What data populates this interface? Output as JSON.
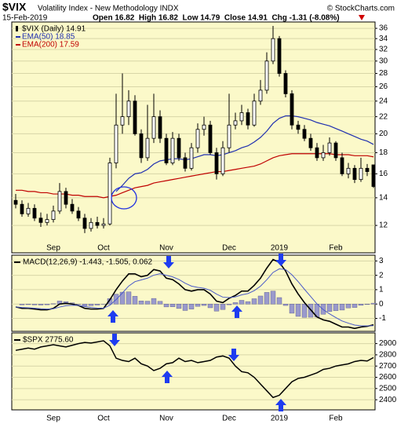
{
  "chart_data": [
    {
      "type": "candlestick",
      "symbol": "$VIX",
      "title": "Volatility Index - New Methodology INDX",
      "date": "15-Feb-2019",
      "quote": "Open 16.82  High 16.82  Low 14.79  Close 14.91  Chg -1.31 (-8.08%)",
      "source": "© StockCharts.com",
      "categories": [
        null,
        null,
        null,
        null,
        null,
        null,
        "Sep",
        null,
        null,
        null,
        null,
        null,
        null,
        null,
        "Oct",
        null,
        null,
        null,
        null,
        null,
        null,
        null,
        null,
        null,
        "Nov",
        null,
        null,
        null,
        null,
        null,
        null,
        null,
        null,
        null,
        "Dec",
        null,
        null,
        null,
        null,
        null,
        null,
        null,
        "2019",
        null,
        null,
        null,
        null,
        null,
        null,
        null,
        null,
        "Feb",
        null,
        null,
        null,
        null,
        null,
        null
      ],
      "candles": {
        "name": "$VIX (Daily) 14.91",
        "color": "#000000",
        "open": [
          13.8,
          13.5,
          12.8,
          13.2,
          12.5,
          12.2,
          12.4,
          13.0,
          14.5,
          13.5,
          13.0,
          12.5,
          11.8,
          12.2,
          12.0,
          12.1,
          17.0,
          21.0,
          22.0,
          24.0,
          20.0,
          17.5,
          19.5,
          22.0,
          19.5,
          17.0,
          19.5,
          17.5,
          16.5,
          18.5,
          20.5,
          21.0,
          18.0,
          16.0,
          18.5,
          21.0,
          21.5,
          22.5,
          21.0,
          24.0,
          25.5,
          30.0,
          34.0,
          28.0,
          25.0,
          21.0,
          20.5,
          19.5,
          18.5,
          17.5,
          18.0,
          19.0,
          17.5,
          16.0,
          16.5,
          15.5,
          16.5,
          16.82
        ],
        "high": [
          14.3,
          13.8,
          13.6,
          13.5,
          12.9,
          12.8,
          13.4,
          15.2,
          14.8,
          13.9,
          13.3,
          12.8,
          12.5,
          12.6,
          12.5,
          17.5,
          25.0,
          28.0,
          25.5,
          24.8,
          20.5,
          23.5,
          25.0,
          22.8,
          20.0,
          20.2,
          20.0,
          18.0,
          19.0,
          21.2,
          22.0,
          21.5,
          18.5,
          19.2,
          25.0,
          22.5,
          23.5,
          23.0,
          25.0,
          27.0,
          31.5,
          36.5,
          34.5,
          28.5,
          25.5,
          21.5,
          21.0,
          20.0,
          19.0,
          18.8,
          19.6,
          19.2,
          18.0,
          17.0,
          16.8,
          17.5,
          16.9,
          16.82
        ],
        "low": [
          13.2,
          12.6,
          12.6,
          12.3,
          11.9,
          12.0,
          12.2,
          12.8,
          13.2,
          12.8,
          12.3,
          11.5,
          11.6,
          11.8,
          11.8,
          12.0,
          16.5,
          20.0,
          21.0,
          19.8,
          17.0,
          17.2,
          19.0,
          19.0,
          16.8,
          16.8,
          17.2,
          16.2,
          16.3,
          18.0,
          19.8,
          17.8,
          15.5,
          15.8,
          18.0,
          20.5,
          21.0,
          20.5,
          20.8,
          23.5,
          25.0,
          29.5,
          27.5,
          24.5,
          20.5,
          20.0,
          19.2,
          18.2,
          17.2,
          17.2,
          17.7,
          17.2,
          15.8,
          15.6,
          15.2,
          15.3,
          15.8,
          14.79
        ],
        "close": [
          13.5,
          12.8,
          13.2,
          12.5,
          12.2,
          12.4,
          13.0,
          14.5,
          13.5,
          13.0,
          12.5,
          11.8,
          12.2,
          12.0,
          12.1,
          17.0,
          21.0,
          22.0,
          24.0,
          20.0,
          17.5,
          19.5,
          22.0,
          19.5,
          17.0,
          19.5,
          17.5,
          16.5,
          18.5,
          20.5,
          21.0,
          18.0,
          16.0,
          18.5,
          21.0,
          21.5,
          22.5,
          21.0,
          24.0,
          25.5,
          30.0,
          34.0,
          28.0,
          25.0,
          21.0,
          20.5,
          19.5,
          18.5,
          17.5,
          18.0,
          19.0,
          17.5,
          16.0,
          16.5,
          15.5,
          16.5,
          16.2,
          14.91
        ]
      },
      "series": [
        {
          "name": "EMA(50) 18.85",
          "color": "#1f2fb0",
          "values": [
            null,
            null,
            null,
            null,
            null,
            null,
            null,
            null,
            null,
            null,
            null,
            null,
            null,
            null,
            null,
            null,
            14.5,
            15.0,
            15.6,
            16.0,
            16.1,
            16.4,
            16.9,
            17.2,
            17.3,
            17.4,
            17.4,
            17.3,
            17.4,
            17.6,
            17.8,
            17.8,
            17.7,
            17.8,
            18.0,
            18.2,
            18.5,
            18.7,
            19.1,
            19.6,
            20.3,
            21.2,
            21.8,
            22.1,
            22.1,
            22.0,
            21.8,
            21.6,
            21.3,
            21.1,
            20.9,
            20.6,
            20.3,
            20.0,
            19.7,
            19.4,
            19.2,
            18.85
          ]
        },
        {
          "name": "EMA(200) 17.59",
          "color": "#c00000",
          "values": [
            14.6,
            14.6,
            14.5,
            14.5,
            14.4,
            14.4,
            14.3,
            14.3,
            14.3,
            14.2,
            14.2,
            14.1,
            14.1,
            14.1,
            14.0,
            14.1,
            14.2,
            14.4,
            14.6,
            14.8,
            14.9,
            15.0,
            15.2,
            15.3,
            15.4,
            15.5,
            15.6,
            15.7,
            15.8,
            15.9,
            16.0,
            16.1,
            16.2,
            16.2,
            16.3,
            16.4,
            16.5,
            16.6,
            16.7,
            16.9,
            17.2,
            17.5,
            17.7,
            17.8,
            17.9,
            17.9,
            17.9,
            17.9,
            17.9,
            17.9,
            17.9,
            17.8,
            17.8,
            17.8,
            17.7,
            17.7,
            17.7,
            17.59
          ]
        }
      ],
      "ylim": [
        10.3,
        37.3
      ],
      "yticks": [
        12,
        14,
        16,
        18,
        20,
        22,
        24,
        26,
        28,
        30,
        32,
        34,
        36
      ],
      "log_scale": true,
      "grid": true
    },
    {
      "type": "macd",
      "label": "MACD(12,26,9) -1.443, -1.505, 0.062",
      "series": [
        {
          "color": "#000000",
          "values": [
            -0.2,
            -0.3,
            -0.3,
            -0.35,
            -0.4,
            -0.4,
            -0.3,
            0.0,
            0.05,
            0.0,
            -0.1,
            -0.3,
            -0.35,
            -0.35,
            -0.3,
            0.3,
            1.0,
            1.6,
            2.1,
            2.1,
            1.9,
            2.0,
            2.4,
            2.3,
            1.8,
            1.7,
            1.4,
            1.0,
            0.9,
            1.0,
            1.0,
            0.7,
            0.2,
            0.1,
            0.4,
            0.6,
            0.9,
            0.9,
            1.3,
            1.8,
            2.5,
            3.1,
            2.9,
            2.3,
            1.4,
            0.7,
            0.1,
            -0.4,
            -0.9,
            -1.1,
            -1.2,
            -1.4,
            -1.6,
            -1.6,
            -1.7,
            -1.6,
            -1.55,
            -1.443
          ]
        },
        {
          "color": "#4a5ac8",
          "values": [
            -0.2,
            -0.24,
            -0.26,
            -0.29,
            -0.33,
            -0.35,
            -0.33,
            -0.21,
            -0.12,
            -0.08,
            -0.09,
            -0.17,
            -0.24,
            -0.28,
            -0.29,
            -0.08,
            0.31,
            0.77,
            1.25,
            1.56,
            1.68,
            1.8,
            2.01,
            2.11,
            2.0,
            1.89,
            1.71,
            1.45,
            1.25,
            1.16,
            1.1,
            0.96,
            0.69,
            0.48,
            0.45,
            0.5,
            0.64,
            0.73,
            0.93,
            1.24,
            1.69,
            2.2,
            2.45,
            2.4,
            2.04,
            1.56,
            1.03,
            0.52,
            0.01,
            -0.39,
            -0.68,
            -0.94,
            -1.18,
            -1.33,
            -1.46,
            -1.51,
            -1.52,
            -1.505
          ]
        }
      ],
      "histogram": {
        "color": "#9a9acc",
        "values": [
          0.0,
          -0.06,
          -0.04,
          -0.06,
          -0.07,
          -0.05,
          0.03,
          0.21,
          0.17,
          0.08,
          -0.01,
          -0.13,
          -0.11,
          -0.07,
          -0.01,
          0.38,
          0.69,
          0.83,
          0.85,
          0.54,
          0.22,
          0.2,
          0.39,
          0.19,
          -0.2,
          -0.19,
          -0.31,
          -0.45,
          -0.35,
          -0.16,
          -0.1,
          -0.26,
          -0.49,
          -0.38,
          -0.05,
          0.1,
          0.26,
          0.17,
          0.37,
          0.56,
          0.81,
          0.9,
          0.45,
          -0.1,
          -0.64,
          -0.86,
          -0.93,
          -0.92,
          -0.91,
          -0.71,
          -0.52,
          -0.46,
          -0.42,
          -0.27,
          -0.24,
          -0.09,
          -0.03,
          0.062
        ]
      },
      "ylim": [
        -1.9,
        3.4
      ],
      "yticks": [
        3,
        2,
        1,
        0,
        -1
      ],
      "grid": true
    },
    {
      "type": "line",
      "label": "$SPX 2775.60",
      "color": "#000000",
      "values": [
        2840,
        2850,
        2860,
        2850,
        2870,
        2880,
        2890,
        2880,
        2870,
        2885,
        2900,
        2910,
        2905,
        2915,
        2925,
        2880,
        2770,
        2750,
        2740,
        2770,
        2720,
        2700,
        2660,
        2680,
        2720,
        2730,
        2770,
        2740,
        2750,
        2730,
        2740,
        2750,
        2780,
        2790,
        2770,
        2700,
        2650,
        2640,
        2600,
        2540,
        2480,
        2420,
        2440,
        2500,
        2560,
        2590,
        2600,
        2620,
        2640,
        2670,
        2680,
        2700,
        2710,
        2720,
        2740,
        2750,
        2745,
        2775.6
      ],
      "categories": [
        null,
        null,
        null,
        null,
        null,
        null,
        "Sep",
        null,
        null,
        null,
        null,
        null,
        null,
        null,
        "Oct",
        null,
        null,
        null,
        null,
        null,
        null,
        null,
        null,
        null,
        "Nov",
        null,
        null,
        null,
        null,
        null,
        null,
        null,
        null,
        null,
        "Dec",
        null,
        null,
        null,
        null,
        null,
        null,
        null,
        "2019",
        null,
        null,
        null,
        null,
        null,
        null,
        null,
        null,
        "Feb",
        null,
        null,
        null,
        null,
        null,
        null
      ],
      "ylim": [
        2310,
        2995
      ],
      "yticks": [
        2900,
        2800,
        2700,
        2600,
        2500,
        2400
      ],
      "grid": true
    }
  ]
}
